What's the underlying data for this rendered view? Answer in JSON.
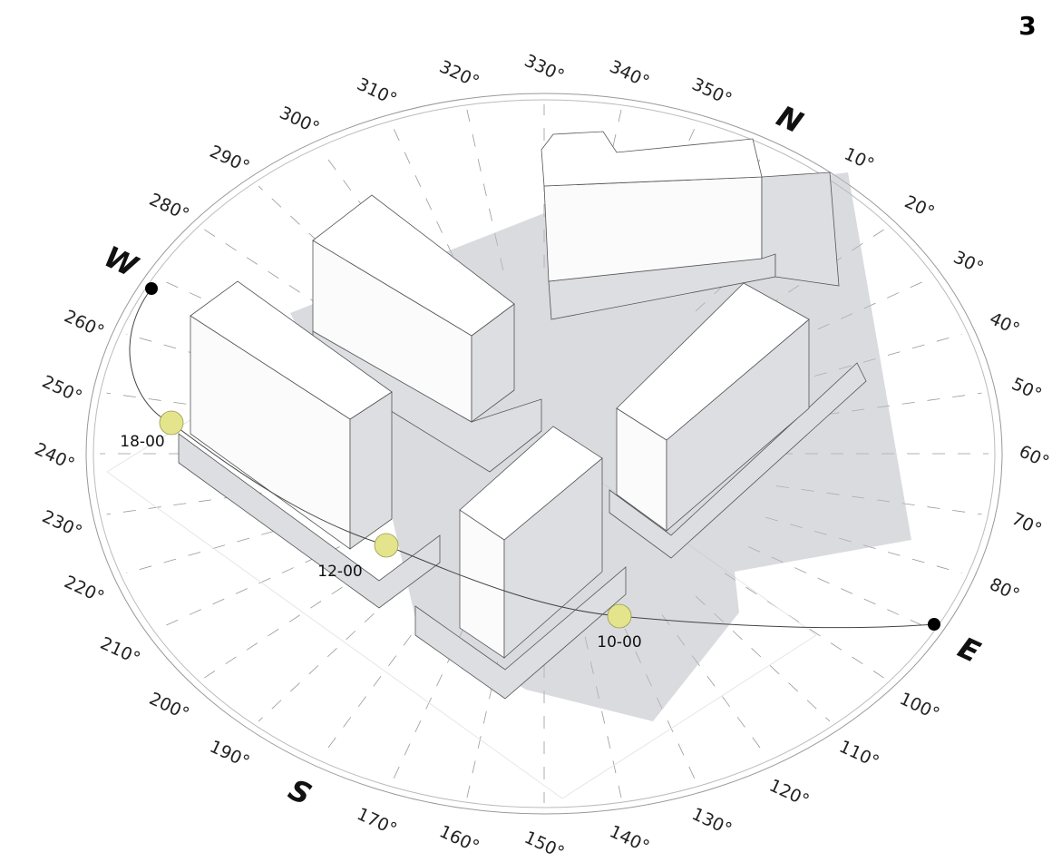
{
  "page_number": "3",
  "cardinal_labels": [
    "N",
    "E",
    "S",
    "W"
  ],
  "degree_labels": [
    "10°",
    "20°",
    "30°",
    "40°",
    "50°",
    "60°",
    "70°",
    "80°",
    "100°",
    "110°",
    "120°",
    "130°",
    "140°",
    "150°",
    "160°",
    "170°",
    "190°",
    "200°",
    "210°",
    "220°",
    "230°",
    "240°",
    "250°",
    "260°",
    "280°",
    "290°",
    "300°",
    "310°",
    "320°",
    "330°",
    "340°",
    "350°"
  ],
  "sun_positions": [
    {
      "label": "18-00"
    },
    {
      "label": "12-00"
    },
    {
      "label": "10-00"
    }
  ]
}
